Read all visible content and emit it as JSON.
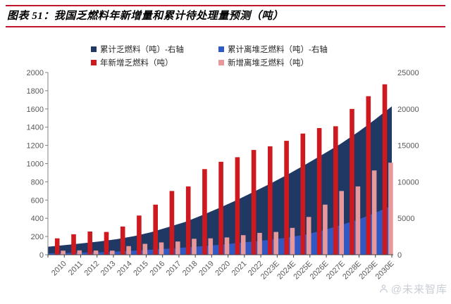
{
  "header": {
    "title": "图表 51：我国乏燃料年新增量和累计待处理量预测（吨）"
  },
  "watermark": {
    "text": "@未来智库"
  },
  "colors": {
    "rule_red": "#C1152E",
    "axis_line": "#808080",
    "axis_bottom_line": "#404040",
    "axis_label": "#595959",
    "legend_text": "#262626",
    "watermark_gray": "#C9CDD6",
    "navy": "#1F3864",
    "blue": "#3159C4",
    "red": "#CE1A1F",
    "pink": "#E7989B"
  },
  "chart_data": {
    "type": "combo",
    "title": "我国乏燃料年新增量和累计待处理量预测（吨）",
    "grid": false,
    "legend_position": "top",
    "categories": [
      "2010",
      "2011",
      "2012",
      "2013",
      "2014",
      "2015",
      "2016",
      "2017",
      "2018",
      "2019",
      "2020",
      "2021",
      "2022",
      "2023E",
      "2024E",
      "2025E",
      "2026E",
      "2027E",
      "2028E",
      "2029E",
      "2030E"
    ],
    "series": [
      {
        "name": "累计乏燃料（吨）-右轴",
        "type": "area",
        "axis": "right",
        "color": "#1F3864",
        "values": [
          1100,
          1320,
          1570,
          1820,
          2130,
          2550,
          3090,
          3780,
          4520,
          5450,
          6460,
          7520,
          8660,
          9840,
          11080,
          12400,
          13780,
          15180,
          16770,
          18500,
          20360
        ]
      },
      {
        "name": "累计离堆乏燃料（吨）-右轴",
        "type": "area",
        "axis": "right",
        "color": "#3159C4",
        "values": [
          195,
          245,
          290,
          335,
          430,
          550,
          685,
          830,
          1005,
          1185,
          1375,
          1590,
          1830,
          2080,
          2375,
          2790,
          3340,
          4040,
          4790,
          5715,
          6725
        ]
      },
      {
        "name": "年新增乏燃料（吨）",
        "type": "bar",
        "axis": "left",
        "color": "#CE1A1F",
        "values": [
          180,
          225,
          255,
          250,
          310,
          430,
          550,
          700,
          750,
          940,
          1020,
          1070,
          1150,
          1190,
          1250,
          1330,
          1390,
          1410,
          1600,
          1740,
          1870
        ]
      },
      {
        "name": "新增离堆乏燃料（吨）",
        "type": "bar",
        "axis": "left",
        "color": "#E7989B",
        "values": [
          45,
          48,
          46,
          45,
          95,
          120,
          135,
          145,
          175,
          180,
          190,
          215,
          240,
          250,
          295,
          415,
          550,
          700,
          750,
          925,
          1010
        ]
      }
    ],
    "left_axis": {
      "min": 0,
      "max": 2000,
      "step": 200,
      "ticks": [
        0,
        200,
        400,
        600,
        800,
        1000,
        1200,
        1400,
        1600,
        1800,
        2000
      ]
    },
    "right_axis": {
      "min": 0,
      "max": 25000,
      "step": 5000,
      "ticks": [
        0,
        5000,
        10000,
        15000,
        20000,
        25000
      ]
    }
  }
}
